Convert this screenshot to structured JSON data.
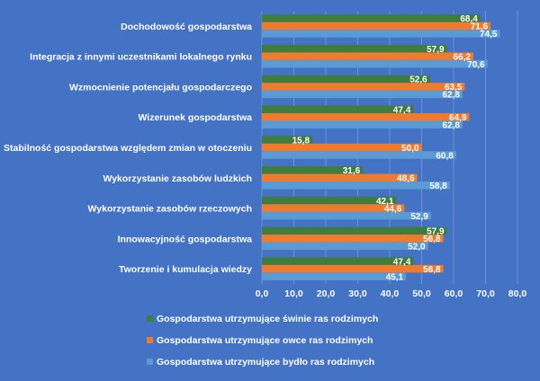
{
  "chart_data": {
    "type": "bar",
    "orientation": "horizontal",
    "categories": [
      "Dochodowość gospodarstwa",
      "Integracja z innymi uczestnikami lokalnego rynku",
      "Wzmocnienie potencjału gospodarczego",
      "Wizerunek gospodarstwa",
      "Stabilność gospodarstwa względem zmian w otoczeniu",
      "Wykorzystanie zasobów ludzkich",
      "Wykorzystanie zasobów rzeczowych",
      "Innowacyjność gospodarstwa",
      "Tworzenie i kumulacja wiedzy"
    ],
    "series": [
      {
        "name": "Gospodarstwa utrzymujące świnie ras rodzimych",
        "color": "#3e7d3e",
        "values": [
          68.4,
          57.9,
          52.6,
          47.4,
          15.8,
          31.6,
          42.1,
          57.9,
          47.4
        ],
        "labels": [
          "68,4",
          "57,9",
          "52,6",
          "47,4",
          "15,8",
          "31,6",
          "42,1",
          "57,9",
          "47,4"
        ]
      },
      {
        "name": "Gospodarstwa utrzymujące owce ras rodzimych",
        "color": "#f07a2e",
        "values": [
          71.6,
          66.2,
          63.5,
          64.9,
          50.0,
          48.6,
          44.6,
          56.8,
          56.8
        ],
        "labels": [
          "71,6",
          "66,2",
          "63,5",
          "64,9",
          "50,0",
          "48,6",
          "44,6",
          "56,8",
          "56,8"
        ]
      },
      {
        "name": "Gospodarstwa utrzymujące bydło ras rodzimych",
        "color": "#5b9bd5",
        "values": [
          74.5,
          70.6,
          62.8,
          62.8,
          60.8,
          58.8,
          52.9,
          52.0,
          45.1
        ],
        "labels": [
          "74,5",
          "70,6",
          "62,8",
          "62,8",
          "60,8",
          "58,8",
          "52,9",
          "52,0",
          "45,1"
        ]
      }
    ],
    "xlim": [
      0,
      80
    ],
    "xticks": [
      0,
      10,
      20,
      30,
      40,
      50,
      60,
      70,
      80
    ],
    "xtick_labels": [
      "0,0",
      "10,0",
      "20,0",
      "30,0",
      "40,0",
      "50,0",
      "60,0",
      "70,0",
      "80,0"
    ],
    "grid": true,
    "legend_position": "bottom",
    "background_color": "#4472c4",
    "title": "",
    "xlabel": "",
    "ylabel": ""
  }
}
